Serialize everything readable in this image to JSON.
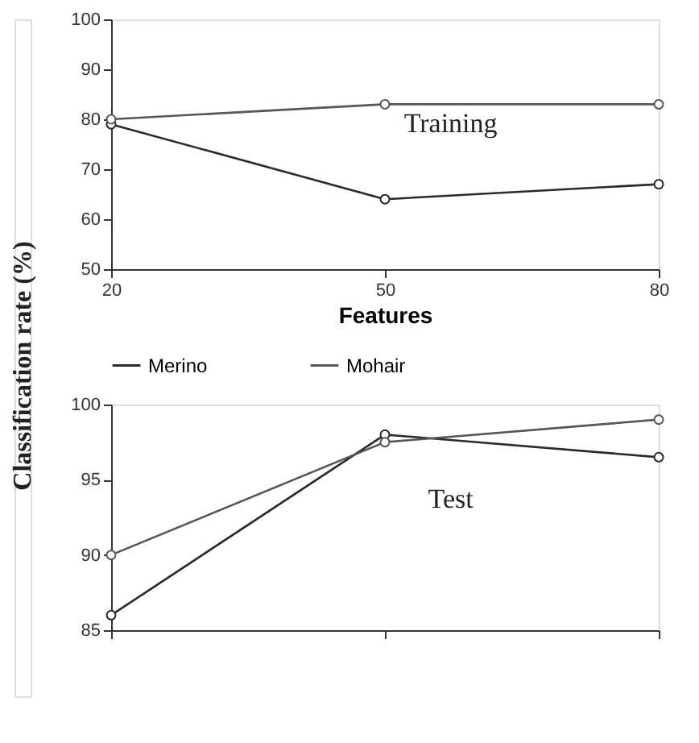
{
  "chart_data": [
    {
      "type": "line",
      "x": [
        20,
        50,
        80
      ],
      "xlabel": "Features",
      "xlim": [
        20,
        80
      ],
      "xticks": [
        20,
        50,
        80
      ],
      "ylim": [
        50,
        100
      ],
      "yticks": [
        50,
        60,
        70,
        80,
        90,
        100
      ],
      "grid": false,
      "legend": false,
      "marker": "circle",
      "annotations": [
        "Training"
      ],
      "series": [
        {
          "color": "#2a2a2a",
          "values": [
            79,
            64,
            67
          ]
        },
        {
          "color": "#555555",
          "values": [
            80,
            83,
            83
          ]
        }
      ]
    },
    {
      "type": "line",
      "x": [
        20,
        50,
        80
      ],
      "xlim": [
        20,
        80
      ],
      "xticks": [
        {
          "value": 20,
          "label": null
        },
        {
          "value": 50,
          "label": null
        },
        {
          "value": 80,
          "label": null
        }
      ],
      "ylim": [
        85,
        100
      ],
      "yticks": [
        85,
        90,
        95,
        100
      ],
      "tick_labels": "y",
      "ylabel": "Classification rate (%)",
      "grid": false,
      "legend": "top",
      "marker": "circle",
      "annotations": [
        "Test"
      ],
      "series": [
        {
          "name": "Merino",
          "color": "#2a2a2a",
          "values": [
            86,
            98,
            96.5
          ]
        },
        {
          "name": "Mohair",
          "color": "#555555",
          "values": [
            90,
            97.5,
            99
          ]
        }
      ]
    }
  ]
}
